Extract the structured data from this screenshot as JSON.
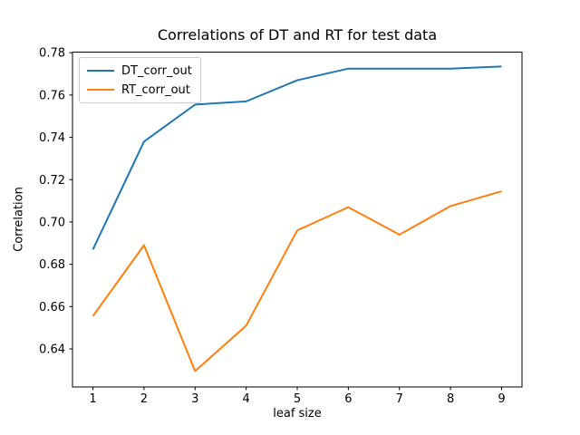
{
  "chart_data": {
    "type": "line",
    "title": "Correlations of DT and RT for test data",
    "xlabel": "leaf size",
    "ylabel": "Correlation",
    "x": [
      1,
      2,
      3,
      4,
      5,
      6,
      7,
      8,
      9
    ],
    "series": [
      {
        "name": "DT_corr_out",
        "color": "#1f77b4",
        "values": [
          0.687,
          0.738,
          0.7555,
          0.757,
          0.767,
          0.7725,
          0.7725,
          0.7725,
          0.7735
        ]
      },
      {
        "name": "RT_corr_out",
        "color": "#ff7f0e",
        "values": [
          0.6555,
          0.689,
          0.6295,
          0.651,
          0.696,
          0.707,
          0.694,
          0.7075,
          0.7145
        ]
      }
    ],
    "xlim": [
      0.6,
      9.4
    ],
    "ylim": [
      0.622,
      0.7803
    ],
    "x_ticks": [
      1,
      2,
      3,
      4,
      5,
      6,
      7,
      8,
      9
    ],
    "y_ticks": [
      0.64,
      0.66,
      0.68,
      0.7,
      0.72,
      0.74,
      0.76,
      0.78
    ],
    "y_tick_decimals": 2,
    "grid": false,
    "legend": {
      "position": "upper left",
      "entries": [
        "DT_corr_out",
        "RT_corr_out"
      ]
    },
    "spine_color": "#000000",
    "line_width": 2
  }
}
